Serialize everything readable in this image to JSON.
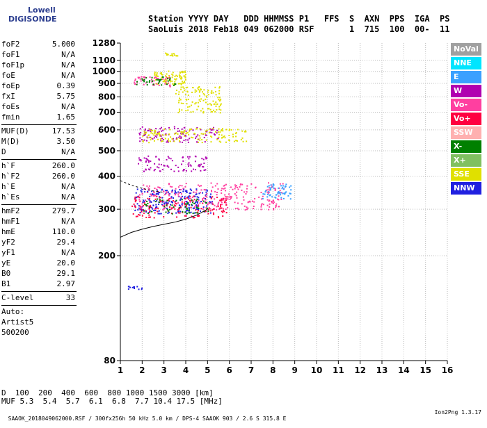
{
  "logo": {
    "line1": "Lowell",
    "line2": "DIGISONDE"
  },
  "header": {
    "line1": "Station YYYY DAY   DDD HHMMSS P1   FFS  S  AXN  PPS  IGA  PS",
    "line2": "SaoLuis 2018 Feb18 049 062000 RSF       1  715  100  00-  11"
  },
  "params": [
    {
      "name": "foF2",
      "value": "5.000"
    },
    {
      "name": "foF1",
      "value": "N/A"
    },
    {
      "name": "foF1p",
      "value": "N/A"
    },
    {
      "name": "foE",
      "value": "N/A"
    },
    {
      "name": "foEp",
      "value": "0.39"
    },
    {
      "name": "fxI",
      "value": "5.75"
    },
    {
      "name": "foEs",
      "value": "N/A"
    },
    {
      "name": "fmin",
      "value": "1.65"
    },
    {
      "sep": true
    },
    {
      "name": "MUF(D)",
      "value": "17.53"
    },
    {
      "name": "M(D)",
      "value": "3.50"
    },
    {
      "name": "D",
      "value": "N/A"
    },
    {
      "sep": true
    },
    {
      "name": "h`F",
      "value": "260.0"
    },
    {
      "name": "h`F2",
      "value": "260.0"
    },
    {
      "name": "h`E",
      "value": "N/A"
    },
    {
      "name": "h`Es",
      "value": "N/A"
    },
    {
      "sep": true
    },
    {
      "name": "hmF2",
      "value": "279.7"
    },
    {
      "name": "hmF1",
      "value": "N/A"
    },
    {
      "name": "hmE",
      "value": "110.0"
    },
    {
      "name": "yF2",
      "value": "29.4"
    },
    {
      "name": "yF1",
      "value": "N/A"
    },
    {
      "name": "yE",
      "value": "20.0"
    },
    {
      "name": "B0",
      "value": "29.1"
    },
    {
      "name": "B1",
      "value": "2.97"
    },
    {
      "sep": true
    },
    {
      "name": "C-level",
      "value": "33"
    },
    {
      "sep": true
    },
    {
      "name": "Auto:",
      "value": ""
    },
    {
      "name": "Artist5",
      "value": ""
    },
    {
      "name": "500200",
      "value": ""
    }
  ],
  "legend": [
    {
      "label": "NoVal",
      "color": "#a0a0a0"
    },
    {
      "label": "NNE",
      "color": "#00e5ff"
    },
    {
      "label": "E",
      "color": "#3aa0ff"
    },
    {
      "label": "W",
      "color": "#b000b0"
    },
    {
      "label": "Vo-",
      "color": "#ff3fa0"
    },
    {
      "label": "Vo+",
      "color": "#ff0040"
    },
    {
      "label": "SSW",
      "color": "#ffb0b0"
    },
    {
      "label": "X-",
      "color": "#008000"
    },
    {
      "label": "X+",
      "color": "#80c060"
    },
    {
      "label": "SSE",
      "color": "#e0e000"
    },
    {
      "label": "NNW",
      "color": "#2020e0"
    }
  ],
  "footer": {
    "d_label": "D",
    "d_values": "  100  200  400  600  800 1000 1500 3000 [km]",
    "muf_label": "MUF",
    "muf_values": " 5.3  5.4  5.7  6.1  6.8  7.7 10.4 17.5 [MHz]",
    "info": "SAAOK_2018049062000.RSF / 300fx256h 50 kHz 5.0 km / DPS-4 SAAOK 903 / 2.6 S 315.8 E",
    "version": "Ion2Png 1.3.17"
  },
  "chart_data": {
    "type": "scatter",
    "xlim": [
      1,
      16
    ],
    "ylim": [
      80,
      1280
    ],
    "y_scale": "log",
    "x_ticks": [
      1,
      2,
      3,
      4,
      5,
      6,
      7,
      8,
      9,
      10,
      11,
      12,
      13,
      14,
      15,
      16
    ],
    "y_ticks": [
      80,
      200,
      300,
      400,
      500,
      600,
      700,
      800,
      900,
      1000,
      1100,
      1280
    ],
    "grid": true,
    "clusters": [
      {
        "series": "NNW",
        "x": [
          1.6,
          5.2
        ],
        "y": [
          290,
          360
        ],
        "count": 220
      },
      {
        "series": "Vo-",
        "x": [
          1.8,
          8.5
        ],
        "y": [
          300,
          380
        ],
        "count": 280
      },
      {
        "series": "Vo+",
        "x": [
          1.5,
          6.0
        ],
        "y": [
          280,
          340
        ],
        "count": 140
      },
      {
        "series": "X-",
        "x": [
          1.8,
          5.0
        ],
        "y": [
          290,
          330
        ],
        "count": 60
      },
      {
        "series": "E",
        "x": [
          7.5,
          8.8
        ],
        "y": [
          330,
          380
        ],
        "count": 60
      },
      {
        "series": "W",
        "x": [
          1.7,
          5.0
        ],
        "y": [
          420,
          480
        ],
        "count": 90
      },
      {
        "series": "W",
        "x": [
          1.8,
          5.5
        ],
        "y": [
          540,
          620
        ],
        "count": 120
      },
      {
        "series": "SSE",
        "x": [
          2.0,
          6.8
        ],
        "y": [
          540,
          610
        ],
        "count": 140
      },
      {
        "series": "SSE",
        "x": [
          3.5,
          5.6
        ],
        "y": [
          700,
          880
        ],
        "count": 120
      },
      {
        "series": "SSE",
        "x": [
          2.5,
          4.0
        ],
        "y": [
          890,
          1010
        ],
        "count": 90
      },
      {
        "series": "SSE",
        "x": [
          2.8,
          3.6
        ],
        "y": [
          1150,
          1180
        ],
        "count": 15
      },
      {
        "series": "Vo-",
        "x": [
          1.6,
          3.3
        ],
        "y": [
          880,
          960
        ],
        "count": 50
      },
      {
        "series": "X-",
        "x": [
          1.7,
          3.5
        ],
        "y": [
          890,
          960
        ],
        "count": 35
      },
      {
        "series": "NNW",
        "x": [
          1.3,
          2.0
        ],
        "y": [
          150,
          155
        ],
        "count": 12
      }
    ],
    "trace": {
      "x": [
        1.0,
        1.5,
        2.0,
        2.5,
        3.0,
        3.5,
        4.0,
        4.5,
        5.0
      ],
      "y": [
        235,
        245,
        252,
        258,
        263,
        268,
        275,
        285,
        300
      ]
    },
    "secondary_trace": {
      "x": [
        1.0,
        1.5,
        2.0,
        2.5,
        3.0
      ],
      "y": [
        385,
        370,
        360,
        352,
        348
      ]
    }
  }
}
